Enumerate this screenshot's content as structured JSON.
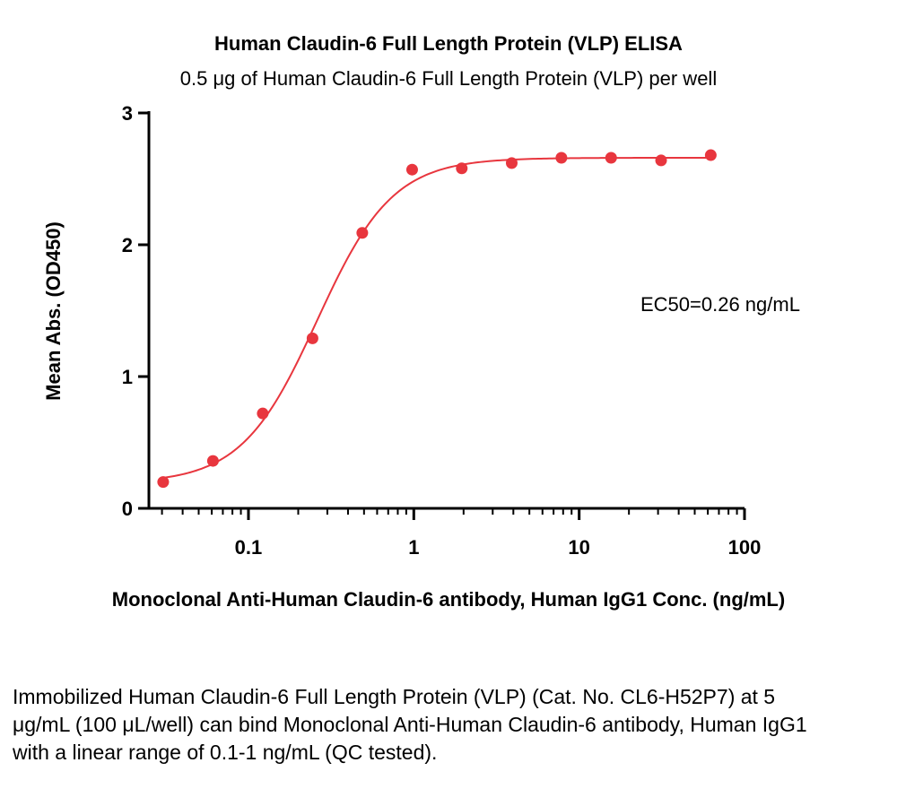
{
  "chart_data": {
    "type": "scatter",
    "title": "Human Claudin-6 Full Length Protein (VLP) ELISA",
    "subtitle": "0.5 μg of Human Claudin-6 Full Length Protein (VLP) per well",
    "xlabel": "Monoclonal Anti-Human Claudin-6 antibody, Human IgG1 Conc. (ng/mL)",
    "ylabel": "Mean Abs. (OD450)",
    "xscale": "log",
    "xlim": [
      0.025,
      100
    ],
    "ylim": [
      0,
      3
    ],
    "xticks": [
      {
        "value": 0.1,
        "label": "0.1"
      },
      {
        "value": 1,
        "label": "1"
      },
      {
        "value": 10,
        "label": "10"
      },
      {
        "value": 100,
        "label": "100"
      }
    ],
    "yticks": [
      {
        "value": 0,
        "label": "0"
      },
      {
        "value": 1,
        "label": "1"
      },
      {
        "value": 2,
        "label": "2"
      },
      {
        "value": 3,
        "label": "3"
      }
    ],
    "grid": false,
    "color": "#e8363e",
    "series": [
      {
        "x": [
          0.0305,
          0.061,
          0.122,
          0.244,
          0.488,
          0.977,
          1.95,
          3.91,
          7.81,
          15.6,
          31.3,
          62.5
        ],
        "y": [
          0.2,
          0.36,
          0.72,
          1.29,
          2.09,
          2.57,
          2.58,
          2.62,
          2.66,
          2.66,
          2.64,
          2.68
        ]
      }
    ],
    "fit": {
      "model": "4PL",
      "bottom": 0.19,
      "top": 2.66,
      "ec50": 0.26,
      "hill": 1.9
    },
    "annotation": "EC50=0.26 ng/mL"
  },
  "caption": "Immobilized Human Claudin-6 Full Length Protein (VLP) (Cat. No. CL6-H52P7) at 5 μg/mL (100 μL/well) can bind Monoclonal Anti-Human Claudin-6 antibody, Human IgG1 with a linear range of 0.1-1 ng/mL (QC tested)."
}
